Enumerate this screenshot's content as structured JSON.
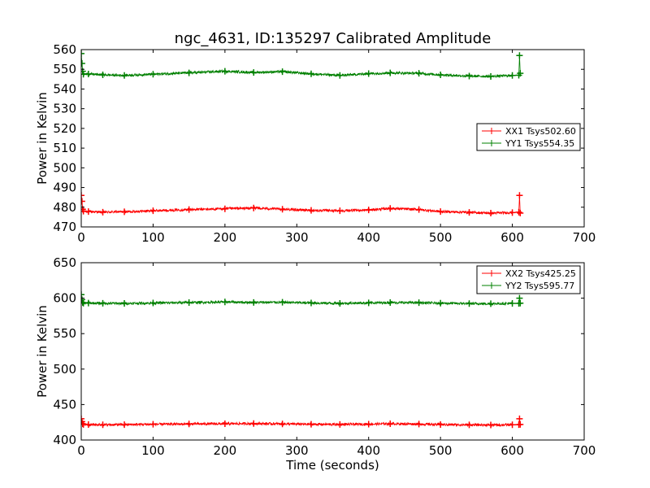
{
  "chart_data": [
    {
      "type": "line",
      "title": "ngc_4631, ID:135297 Calibrated Amplitude",
      "xlabel": "",
      "ylabel": "Power in Kelvin",
      "xlim": [
        0,
        700
      ],
      "ylim": [
        470,
        560
      ],
      "xticks": [
        0,
        100,
        200,
        300,
        400,
        500,
        600,
        700
      ],
      "yticks": [
        470,
        480,
        490,
        500,
        510,
        520,
        530,
        540,
        550,
        560
      ],
      "grid": false,
      "legend_position": "right",
      "series": [
        {
          "name": "XX1 Tsys502.60",
          "color": "#ff0000",
          "x": [
            0,
            1,
            2,
            3,
            10,
            30,
            60,
            100,
            150,
            200,
            240,
            280,
            320,
            360,
            400,
            430,
            470,
            500,
            540,
            570,
            600,
            609,
            610,
            611
          ],
          "y": [
            486,
            483,
            479,
            478,
            477.8,
            477.5,
            477.7,
            478.2,
            478.8,
            479.2,
            479.6,
            479.0,
            478.4,
            478.2,
            478.6,
            479.4,
            478.8,
            477.8,
            477.4,
            477.0,
            477.3,
            477.5,
            486,
            477
          ]
        },
        {
          "name": "YY1 Tsys554.35",
          "color": "#008000",
          "x": [
            0,
            1,
            2,
            3,
            10,
            30,
            60,
            100,
            150,
            200,
            240,
            280,
            320,
            360,
            400,
            430,
            470,
            500,
            540,
            570,
            600,
            609,
            610,
            611
          ],
          "y": [
            558,
            553,
            549,
            547.5,
            547.6,
            547.2,
            546.9,
            547.5,
            548.2,
            549.0,
            548.4,
            548.8,
            547.7,
            546.9,
            547.8,
            548.2,
            548.0,
            547.2,
            546.6,
            546.4,
            546.9,
            547.0,
            557,
            548
          ]
        }
      ]
    },
    {
      "type": "line",
      "title": "",
      "xlabel": "Time (seconds)",
      "ylabel": "Power in Kelvin",
      "xlim": [
        0,
        700
      ],
      "ylim": [
        400,
        650
      ],
      "xticks": [
        0,
        100,
        200,
        300,
        400,
        500,
        600,
        700
      ],
      "yticks": [
        400,
        450,
        500,
        550,
        600,
        650
      ],
      "grid": false,
      "legend_position": "top-right",
      "series": [
        {
          "name": "XX2 Tsys425.25",
          "color": "#ff0000",
          "x": [
            0,
            1,
            2,
            3,
            10,
            30,
            60,
            100,
            150,
            200,
            240,
            280,
            320,
            360,
            400,
            430,
            470,
            500,
            540,
            570,
            600,
            609,
            610,
            611
          ],
          "y": [
            430,
            426,
            423,
            422,
            421.8,
            421.5,
            421.7,
            422.2,
            422.6,
            422.9,
            423.2,
            422.7,
            422.2,
            422.0,
            422.4,
            423.0,
            422.5,
            421.8,
            421.4,
            421.2,
            421.5,
            421.6,
            430,
            422
          ]
        },
        {
          "name": "YY2 Tsys595.77",
          "color": "#008000",
          "x": [
            0,
            1,
            2,
            3,
            10,
            30,
            60,
            100,
            150,
            200,
            240,
            280,
            320,
            360,
            400,
            430,
            470,
            500,
            540,
            570,
            600,
            609,
            610,
            611
          ],
          "y": [
            605,
            598,
            594,
            593,
            593.1,
            592.8,
            592.6,
            593.2,
            593.8,
            594.6,
            594.0,
            594.2,
            593.3,
            592.7,
            593.4,
            593.8,
            593.6,
            592.9,
            592.4,
            592.2,
            592.6,
            592.7,
            600,
            593
          ]
        }
      ]
    }
  ]
}
